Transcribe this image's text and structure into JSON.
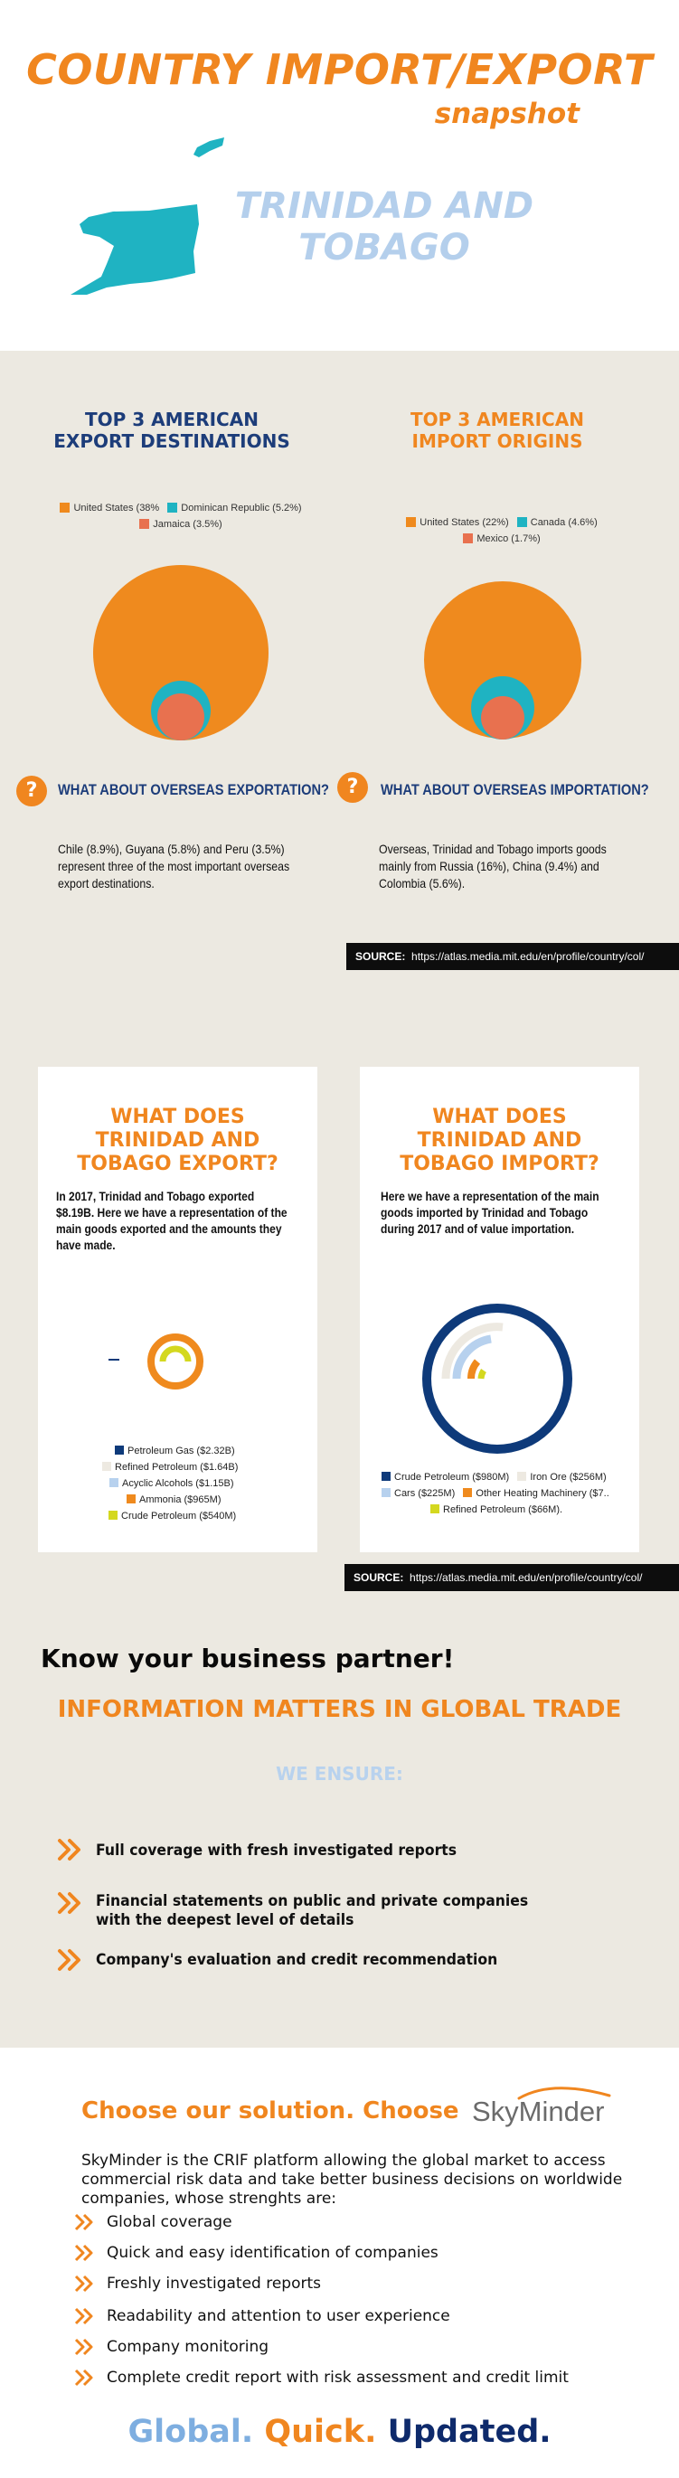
{
  "header": {
    "title_line1": "COUNTRY IMPORT/EXPORT",
    "title_line2": "snapshot",
    "country_line1": "TRINIDAD AND",
    "country_line2": "TOBAGO"
  },
  "export_destinations": {
    "title_line1": "TOP 3 AMERICAN",
    "title_line2": "EXPORT DESTINATIONS",
    "legend": [
      {
        "label": "United States (38%",
        "color": "#ef8a1e"
      },
      {
        "label": "Dominican Republic (5.2%)",
        "color": "#1fb3c2"
      },
      {
        "label": "Jamaica (3.5%)",
        "color": "#e8714f"
      }
    ],
    "question": "WHAT ABOUT OVERSEAS EXPORTATION?",
    "text": "Chile (8.9%), Guyana (5.8%) and Peru (3.5%)  represent three of the most important overseas export destinations."
  },
  "import_origins": {
    "title_line1": "TOP 3 AMERICAN",
    "title_line2": "IMPORT ORIGINS",
    "legend": [
      {
        "label": "United States (22%)",
        "color": "#ef8a1e"
      },
      {
        "label": "Canada (4.6%)",
        "color": "#1fb3c2"
      },
      {
        "label": "Mexico (1.7%)",
        "color": "#e8714f"
      }
    ],
    "question": "WHAT ABOUT OVERSEAS IMPORTATION?",
    "text": "Overseas,  Trinidad and Tobago  imports goods mainly from Russia (16%), China (9.4%) and Colombia (5.6%)."
  },
  "question_icon": "?",
  "source": {
    "label": "SOURCE:",
    "url": "https://atlas.media.mit.edu/en/profile/country/col/"
  },
  "export_card": {
    "title_line1": "WHAT DOES",
    "title_line2": "TRINIDAD AND",
    "title_line3": "TOBAGO EXPORT?",
    "text": "In 2017, Trinidad and Tobago exported $8.19B. Here we have a representation of the main goods exported and the amounts they have made.",
    "legend": [
      {
        "label": "Petroleum Gas ($2.32B)",
        "color": "#0e3a7a"
      },
      {
        "label": "Refined Petroleum ($1.64B)",
        "color": "#ede9e1"
      },
      {
        "label": "Acyclic Alcohols ($1.15B)",
        "color": "#b7d1ee"
      },
      {
        "label": "Ammonia ($965M)",
        "color": "#ef8a1e"
      },
      {
        "label": "Crude Petroleum ($540M)",
        "color": "#d4d81f"
      }
    ]
  },
  "import_card": {
    "title_line1": "WHAT DOES",
    "title_line2": "TRINIDAD AND",
    "title_line3": "TOBAGO IMPORT?",
    "text": "Here we have a representation of the main goods imported by Trinidad and Tobago during 2017 and of value importation.",
    "legend": [
      {
        "label": "Crude Petroleum ($980M)",
        "color": "#0e3a7a"
      },
      {
        "label": "Iron Ore ($256M)",
        "color": "#ede9e1"
      },
      {
        "label": "Cars ($225M)",
        "color": "#b7d1ee"
      },
      {
        "label": "Other Heating Machinery ($7..",
        "color": "#ef8a1e"
      },
      {
        "label": "Refined Petroleum ($66M).",
        "color": "#d4d81f"
      }
    ]
  },
  "partner": {
    "know": "Know your business partner!",
    "info": "INFORMATION MATTERS IN GLOBAL TRADE",
    "ensure": "WE ENSURE:",
    "bullets": [
      "Full coverage with fresh investigated reports",
      "Financial statements on public and private companies with the deepest level of details",
      "Company's evaluation and credit recommendation"
    ]
  },
  "skyminder": {
    "choose": "Choose our solution. Choose",
    "brand": "SkyMinder",
    "text": "SkyMinder is the CRIF platform allowing the global market to access commercial risk data and take better business decisions on worldwide companies, whose strenghts are:",
    "features": [
      "Global coverage",
      "Quick and easy identification of companies",
      "Freshly investigated reports",
      "Readability and attention to user experience",
      "Company monitoring",
      "Complete credit report with risk assessment and credit limit"
    ],
    "slogan": [
      {
        "text": "Global.",
        "color": "#7eaee0"
      },
      {
        "text": "Quick.",
        "color": "#f0861f"
      },
      {
        "text": "Updated.",
        "color": "#0e2a6b"
      }
    ]
  },
  "colors": {
    "orange": "#f0861f",
    "navy": "#0e3a7a",
    "teal": "#1fb3c2",
    "light_blue": "#b4cfec",
    "beige": "#ece9e1"
  }
}
